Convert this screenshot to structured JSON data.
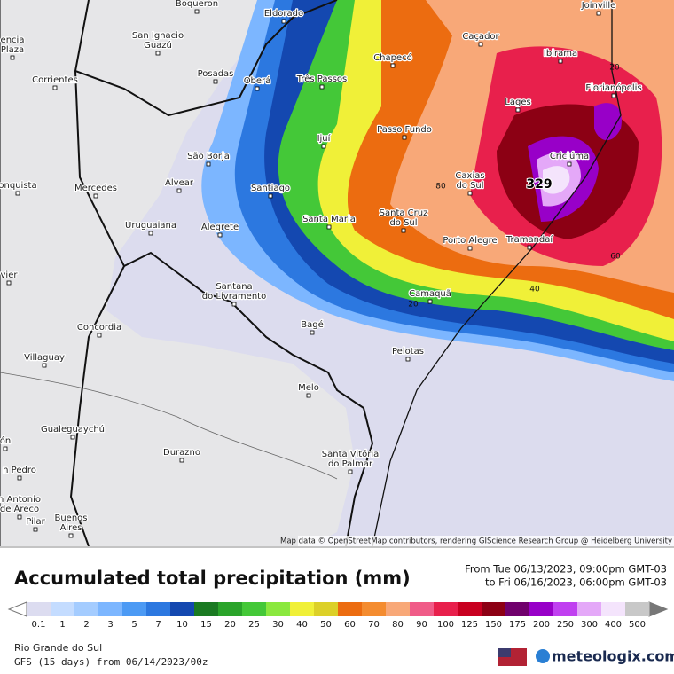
{
  "map": {
    "cities": [
      [
        "Boqueron"
      ],
      [
        "Eldorado"
      ],
      [
        "San Ignacio",
        "Guazú"
      ],
      [
        "Posadas"
      ],
      [
        "Oberá"
      ],
      [
        "Três Passos"
      ],
      [
        "Chapecó"
      ],
      [
        "Caçador"
      ],
      [
        "Ibirama"
      ],
      [
        "Joinville"
      ],
      [
        "Florianópolis"
      ],
      [
        "Lages"
      ],
      [
        "Passo Fundo"
      ],
      [
        "Ijuí"
      ],
      [
        "São Borja"
      ],
      [
        "Corrientes"
      ],
      [
        "Alvear"
      ],
      [
        "Santiago"
      ],
      [
        "Caxias",
        "do Sul"
      ],
      [
        "Criciúma"
      ],
      [
        "Mercedes"
      ],
      [
        "Uruguaiana"
      ],
      [
        "Alegrete"
      ],
      [
        "Santa Maria"
      ],
      [
        "Santa Cruz",
        "do Sul"
      ],
      [
        "Porto Alegre"
      ],
      [
        "Tramandaí"
      ],
      [
        "Santana",
        "do Livramento"
      ],
      [
        "Camaquã"
      ],
      [
        "Bagé"
      ],
      [
        "Concordia"
      ],
      [
        "Villaguay"
      ],
      [
        "Pelotas"
      ],
      [
        "Melo"
      ],
      [
        "Gualeguaychú"
      ],
      [
        "Durazno"
      ],
      [
        "Santa Vitória",
        "do Palmar"
      ],
      [
        "encia",
        "Plaza"
      ],
      [
        "onquista"
      ],
      [
        "vier"
      ],
      [
        "ón"
      ],
      [
        "n Pedro"
      ],
      [
        "n Antonio",
        "de Areco"
      ],
      [
        "Pilar"
      ],
      [
        "Buenos",
        "Aires"
      ]
    ],
    "contours": [
      "20",
      "329",
      "80",
      "60",
      "40",
      "20"
    ],
    "attribution": "Map data © OpenStreetMap contributors, rendering GIScience Research Group @ Heidelberg University"
  },
  "legend": {
    "title": "Accumulated total precipitation (mm)",
    "from": "From Tue 06/13/2023, 09:00pm GMT-03",
    "to": "to Fri 06/16/2023, 06:00pm GMT-03",
    "ticks": [
      "0.1",
      "1",
      "2",
      "3",
      "5",
      "7",
      "10",
      "15",
      "20",
      "25",
      "30",
      "40",
      "50",
      "60",
      "70",
      "80",
      "90",
      "100",
      "125",
      "150",
      "175",
      "200",
      "250",
      "300",
      "400",
      "500"
    ],
    "colors": [
      "#dcdcf0",
      "#c4dcff",
      "#a4ccff",
      "#7cb6ff",
      "#4c9af4",
      "#2c78e0",
      "#1448b0",
      "#1a7a22",
      "#2aa42a",
      "#44c838",
      "#8ae83e",
      "#f0f038",
      "#dcd028",
      "#ec6c10",
      "#f48c30",
      "#f8a878",
      "#f05c88",
      "#e8204c",
      "#c80020",
      "#8c0014",
      "#70006c",
      "#9800c8",
      "#c040f0",
      "#e4a8f8",
      "#f4e4fc",
      "#c8c8c8"
    ]
  },
  "footer": {
    "region": "Rio Grande do Sul",
    "model": "GFS (15 days) from 06/14/2023/00z",
    "brand": "meteologix.com"
  }
}
